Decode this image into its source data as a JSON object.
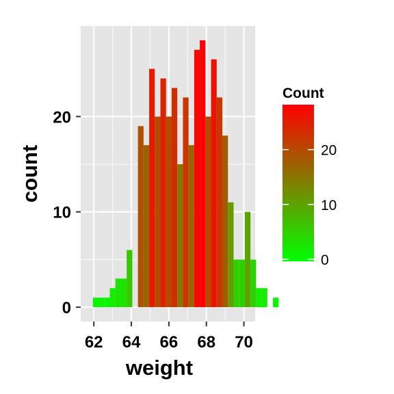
{
  "chart_data": {
    "type": "bar",
    "subtype": "histogram",
    "title": "",
    "xlabel": "weight",
    "ylabel": "count",
    "xlim": [
      61.3,
      70.6
    ],
    "ylim": [
      -1.5,
      29.5
    ],
    "xticks": [
      62,
      64,
      66,
      68,
      70
    ],
    "yticks": [
      0,
      10,
      20
    ],
    "grid": true,
    "legend": "right",
    "bin_width": 0.3,
    "first_bin_start": 61.95,
    "counts": [
      1,
      1,
      1,
      2,
      3,
      3,
      6,
      0,
      19,
      17,
      25,
      20,
      24,
      20,
      23,
      15,
      22,
      17,
      27,
      28,
      20,
      26,
      22,
      18,
      11,
      5,
      5,
      10,
      5,
      2,
      2,
      0,
      1
    ],
    "colorbar": {
      "title": "Count",
      "ticks": [
        0,
        10,
        20
      ],
      "low_color": "#00ff00",
      "high_color": "#ff0000",
      "min": 0,
      "max": 28
    },
    "colors": {
      "panel_background": "#e5e5e5",
      "grid_major": "#ffffff"
    }
  }
}
